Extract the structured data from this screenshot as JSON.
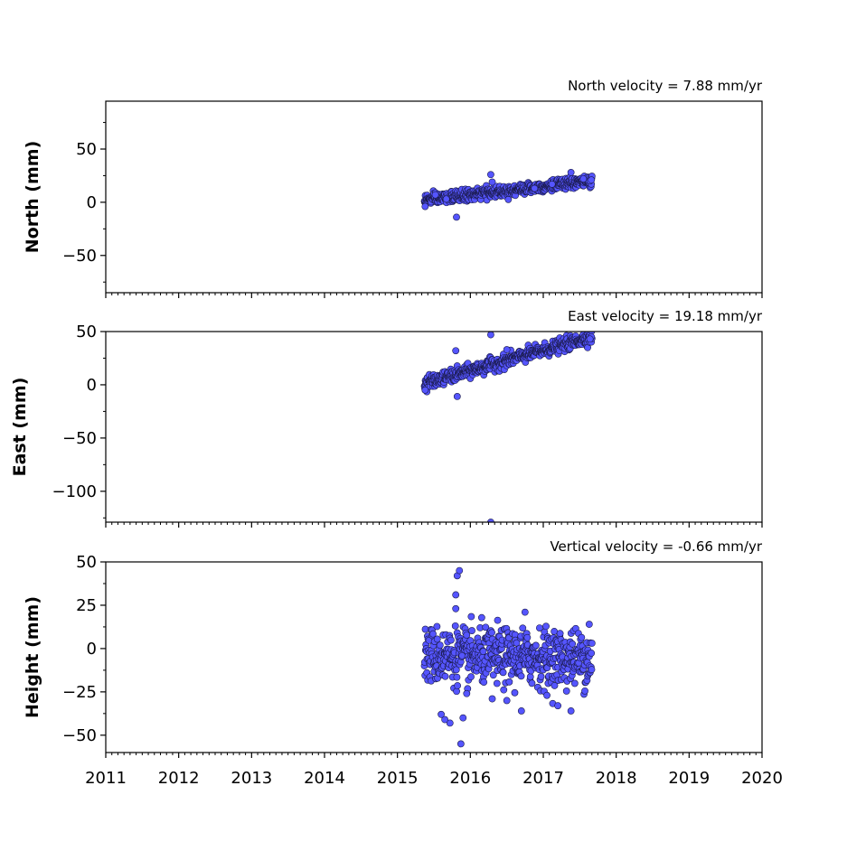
{
  "chart_data": [
    {
      "type": "scatter",
      "panel": "north",
      "annotation": "North velocity = 7.88 mm/yr",
      "title": "",
      "xlabel": "",
      "ylabel": "North (mm)",
      "xlim": [
        2011,
        2020
      ],
      "ylim": [
        -85,
        95
      ],
      "yticks": [
        50,
        0,
        -50
      ],
      "ytick_labels": [
        "50",
        "0",
        "−50"
      ],
      "x_ticklabels_visible": false,
      "trend": {
        "x0": 2015.37,
        "y0": 2.0,
        "rate": 7.88,
        "noise": 2.6
      },
      "x": [
        2015.38,
        2015.52,
        2015.67,
        2015.81,
        2016.28,
        2016.3,
        2016.88,
        2017.12,
        2017.38,
        2017.55,
        2017.64,
        2017.66
      ],
      "y": [
        -4,
        7,
        3,
        -14,
        26,
        19,
        13,
        17,
        28,
        22,
        20,
        21
      ],
      "marker_color": "#5555ff",
      "marker_edge": "#1a1a4a"
    },
    {
      "type": "scatter",
      "panel": "east",
      "annotation": "East velocity = 19.18 mm/yr",
      "title": "",
      "xlabel": "",
      "ylabel": "East (mm)",
      "xlim": [
        2011,
        2020
      ],
      "ylim": [
        -129,
        50
      ],
      "yticks": [
        50,
        0,
        -50,
        -100
      ],
      "ytick_labels": [
        "50",
        "0",
        "−50",
        "−100"
      ],
      "x_ticklabels_visible": false,
      "trend": {
        "x0": 2015.37,
        "y0": 1.0,
        "rate": 19.18,
        "noise": 3.0
      },
      "x": [
        2015.38,
        2015.8,
        2015.82,
        2016.28,
        2016.28,
        2016.5,
        2017.66,
        2017.64
      ],
      "y": [
        -5,
        32,
        -11,
        47,
        -129,
        33,
        45,
        43
      ],
      "marker_color": "#5555ff",
      "marker_edge": "#1a1a4a"
    },
    {
      "type": "scatter",
      "panel": "vertical",
      "annotation": "Vertical velocity = -0.66 mm/yr",
      "title": "",
      "xlabel": "",
      "ylabel": "Height (mm)",
      "xlim": [
        2011,
        2020
      ],
      "ylim": [
        -60,
        50
      ],
      "yticks": [
        50,
        25,
        0,
        -25,
        -50
      ],
      "ytick_labels": [
        "50",
        "25",
        "0",
        "−25",
        "−50"
      ],
      "x_ticklabels_visible": true,
      "xticks": [
        2011,
        2012,
        2013,
        2014,
        2015,
        2016,
        2017,
        2018,
        2019,
        2020
      ],
      "xtick_labels": [
        "2011",
        "2012",
        "2013",
        "2014",
        "2015",
        "2016",
        "2017",
        "2018",
        "2019",
        "2020"
      ],
      "trend": {
        "x0": 2015.37,
        "y0": -4.0,
        "rate": -0.66,
        "noise": 8.0
      },
      "x": [
        2015.8,
        2015.82,
        2015.85,
        2015.87,
        2015.8,
        2015.72,
        2015.65,
        2015.6,
        2015.9,
        2015.95,
        2016.3,
        2016.5,
        2016.75,
        2016.7,
        2017.05,
        2017.2,
        2017.38,
        2017.63
      ],
      "y": [
        31,
        42,
        45,
        -55,
        23,
        -43,
        -41,
        -38,
        -40,
        -26,
        -29,
        -30,
        21,
        -36,
        -27,
        -33,
        -36,
        14
      ],
      "marker_color": "#5555ff",
      "marker_edge": "#1a1a4a"
    }
  ]
}
